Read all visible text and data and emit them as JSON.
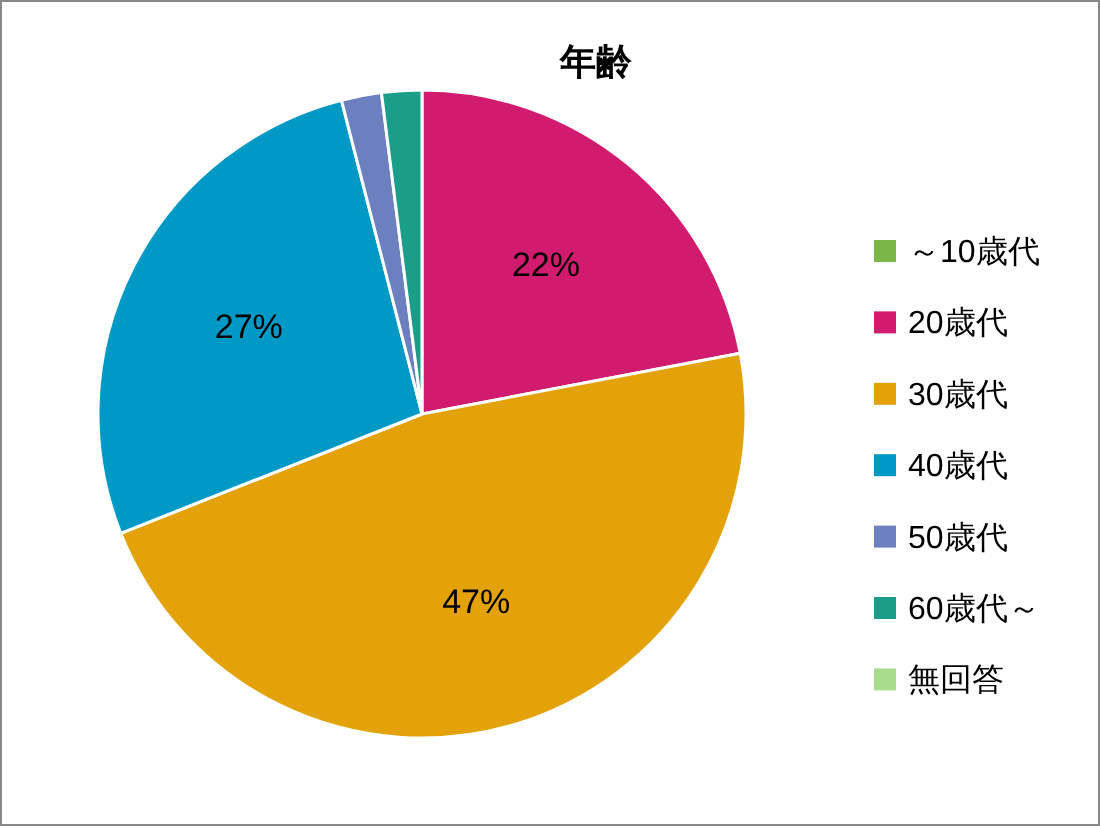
{
  "chart_data": {
    "type": "pie",
    "title": "年齢",
    "categories": [
      "～10歳代",
      "20歳代",
      "30歳代",
      "40歳代",
      "50歳代",
      "60歳代～",
      "無回答"
    ],
    "values": [
      0,
      22,
      47,
      27,
      2,
      2,
      0
    ],
    "colors": [
      "#7ab648",
      "#d01b6e",
      "#e3a20a",
      "#0099c6",
      "#6c7fbf",
      "#1a9e8a",
      "#a8dc8c"
    ],
    "value_labels": [
      null,
      "22%",
      "47%",
      "27%",
      null,
      null,
      null
    ],
    "legend": "right"
  }
}
